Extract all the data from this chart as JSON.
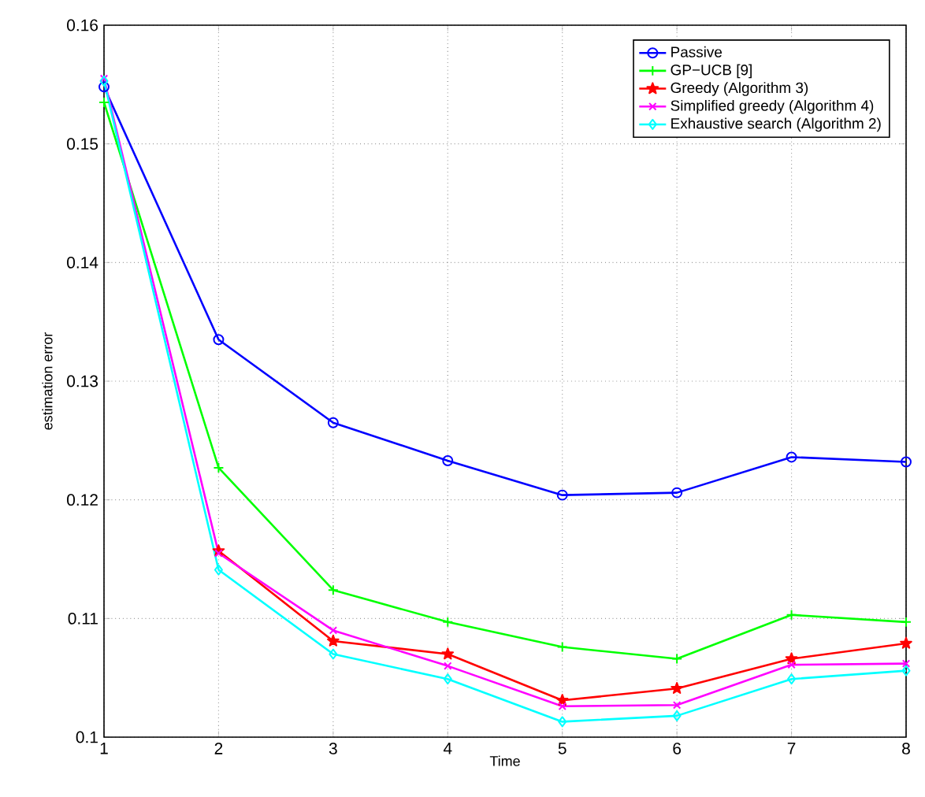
{
  "chart_data": {
    "type": "line",
    "xlabel": "Time",
    "ylabel": "estimation error",
    "x": [
      1,
      2,
      3,
      4,
      5,
      6,
      7,
      8
    ],
    "xlim": [
      1,
      8
    ],
    "ylim": [
      0.1,
      0.16
    ],
    "xticks": [
      1,
      2,
      3,
      4,
      5,
      6,
      7,
      8
    ],
    "yticks": [
      0.1,
      0.11,
      0.12,
      0.13,
      0.14,
      0.15,
      0.16
    ],
    "grid": true,
    "legend": "top right",
    "line_style": "solid",
    "series": [
      {
        "name": "Passive",
        "color": "#0000ff",
        "marker": "circle",
        "values": [
          0.1548,
          0.1335,
          0.1265,
          0.1233,
          0.1204,
          0.1206,
          0.1236,
          0.1232
        ]
      },
      {
        "name": "GP−UCB [9]",
        "color": "#00ff00",
        "marker": "plus",
        "values": [
          0.1535,
          0.1227,
          0.1124,
          0.1097,
          0.1076,
          0.1066,
          0.1103,
          0.1097
        ]
      },
      {
        "name": "Greedy (Algorithm 3)",
        "color": "#ff0000",
        "marker": "star",
        "values": [
          null,
          0.1157,
          0.1081,
          0.107,
          0.1031,
          0.1041,
          0.1066,
          0.1079
        ]
      },
      {
        "name": "Simplified greedy (Algorithm 4)",
        "color": "#ff00ff",
        "marker": "cross",
        "values": [
          0.1555,
          0.1155,
          0.109,
          0.106,
          0.1026,
          0.1027,
          0.1061,
          0.1062
        ]
      },
      {
        "name": "Exhaustive search (Algorithm 2)",
        "color": "#00ffff",
        "marker": "diamond",
        "values": [
          0.1553,
          0.1141,
          0.107,
          0.1049,
          0.1013,
          0.1018,
          0.1049,
          0.1056
        ]
      }
    ]
  }
}
